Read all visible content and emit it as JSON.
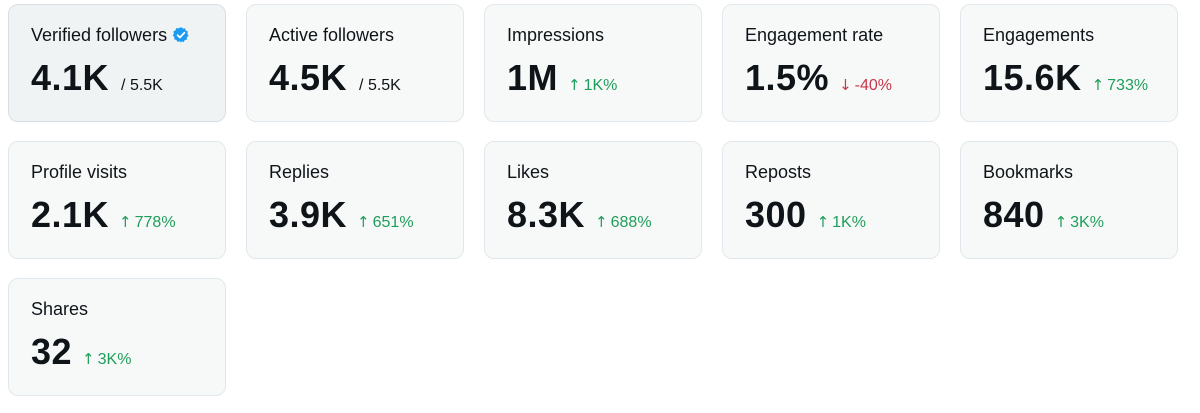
{
  "colors": {
    "up": "#1e9e5a",
    "down": "#c8374a",
    "verified": "#1d9bf0"
  },
  "cards": [
    {
      "title": "Verified followers",
      "value": "4.1K",
      "sub": "/ 5.5K",
      "change": "",
      "direction": "",
      "icon": "verified-badge-icon",
      "highlight": true
    },
    {
      "title": "Active followers",
      "value": "4.5K",
      "sub": "/ 5.5K",
      "change": "",
      "direction": "",
      "icon": "",
      "highlight": false
    },
    {
      "title": "Impressions",
      "value": "1M",
      "sub": "",
      "change": "1K%",
      "direction": "up",
      "icon": "",
      "highlight": false
    },
    {
      "title": "Engagement rate",
      "value": "1.5%",
      "sub": "",
      "change": "-40%",
      "direction": "down",
      "icon": "",
      "highlight": false
    },
    {
      "title": "Engagements",
      "value": "15.6K",
      "sub": "",
      "change": "733%",
      "direction": "up",
      "icon": "",
      "highlight": false
    },
    {
      "title": "Profile visits",
      "value": "2.1K",
      "sub": "",
      "change": "778%",
      "direction": "up",
      "icon": "",
      "highlight": false
    },
    {
      "title": "Replies",
      "value": "3.9K",
      "sub": "",
      "change": "651%",
      "direction": "up",
      "icon": "",
      "highlight": false
    },
    {
      "title": "Likes",
      "value": "8.3K",
      "sub": "",
      "change": "688%",
      "direction": "up",
      "icon": "",
      "highlight": false
    },
    {
      "title": "Reposts",
      "value": "300",
      "sub": "",
      "change": "1K%",
      "direction": "up",
      "icon": "",
      "highlight": false
    },
    {
      "title": "Bookmarks",
      "value": "840",
      "sub": "",
      "change": "3K%",
      "direction": "up",
      "icon": "",
      "highlight": false
    },
    {
      "title": "Shares",
      "value": "32",
      "sub": "",
      "change": "3K%",
      "direction": "up",
      "icon": "",
      "highlight": false
    }
  ]
}
